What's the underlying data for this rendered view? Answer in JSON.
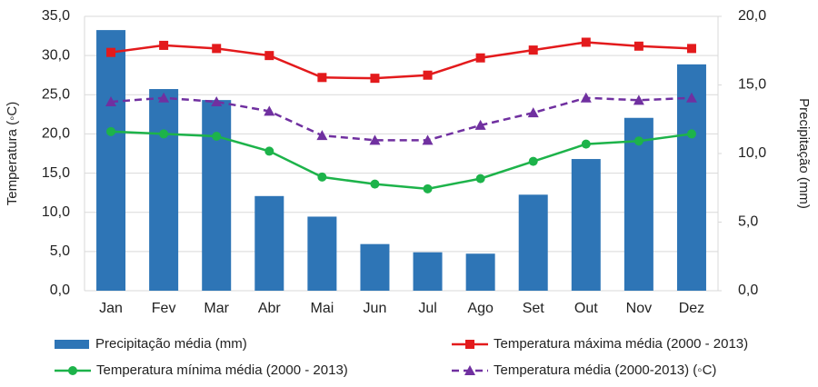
{
  "chart_data": {
    "type": "combo",
    "categories": [
      "Jan",
      "Fev",
      "Mar",
      "Abr",
      "Mai",
      "Jun",
      "Jul",
      "Ago",
      "Set",
      "Out",
      "Nov",
      "Dez"
    ],
    "y_label": "Temperatura (◦C)",
    "y2_label": "Precipitação (mm)",
    "ylim": [
      0,
      35
    ],
    "yticks": [
      {
        "value": 0,
        "label": "0,0"
      },
      {
        "value": 5,
        "label": "5,0"
      },
      {
        "value": 10,
        "label": "10,0"
      },
      {
        "value": 15,
        "label": "15,0"
      },
      {
        "value": 20,
        "label": "20,0"
      },
      {
        "value": 25,
        "label": "25,0"
      },
      {
        "value": 30,
        "label": "30,0"
      },
      {
        "value": 35,
        "label": "35,0"
      }
    ],
    "y2lim": [
      0,
      20
    ],
    "y2ticks": [
      {
        "value": 0,
        "label": "0,0"
      },
      {
        "value": 5,
        "label": "5,0"
      },
      {
        "value": 10,
        "label": "10,0"
      },
      {
        "value": 15,
        "label": "15,0"
      },
      {
        "value": 20,
        "label": "20,0"
      }
    ],
    "grid": true,
    "series": [
      {
        "name": "Precipitação média (mm)",
        "type": "bar",
        "axis": "y2",
        "color": "#2e75b6",
        "values": [
          19.0,
          14.7,
          13.9,
          6.9,
          5.4,
          3.4,
          2.8,
          2.7,
          7.0,
          9.6,
          12.6,
          16.5
        ]
      },
      {
        "name": "Temperatura máxima média (2000 - 2013)",
        "type": "line",
        "marker": "square",
        "dash": false,
        "color": "#e31a1c",
        "values": [
          30.4,
          31.3,
          30.9,
          30.0,
          27.2,
          27.1,
          27.5,
          29.7,
          30.7,
          31.7,
          31.2,
          30.9
        ]
      },
      {
        "name": "Temperatura mínima média (2000 - 2013)",
        "type": "line",
        "marker": "circle",
        "dash": false,
        "color": "#1db34a",
        "values": [
          20.3,
          20.0,
          19.7,
          17.8,
          14.5,
          13.6,
          13.0,
          14.3,
          16.5,
          18.7,
          19.1,
          20.0
        ]
      },
      {
        "name": "Temperatura média (2000-2013) (◦C)",
        "type": "line",
        "marker": "triangle",
        "dash": true,
        "color": "#7030a0",
        "values": [
          24.1,
          24.6,
          24.1,
          22.9,
          19.8,
          19.2,
          19.2,
          21.1,
          22.7,
          24.6,
          24.3,
          24.6
        ]
      }
    ]
  }
}
